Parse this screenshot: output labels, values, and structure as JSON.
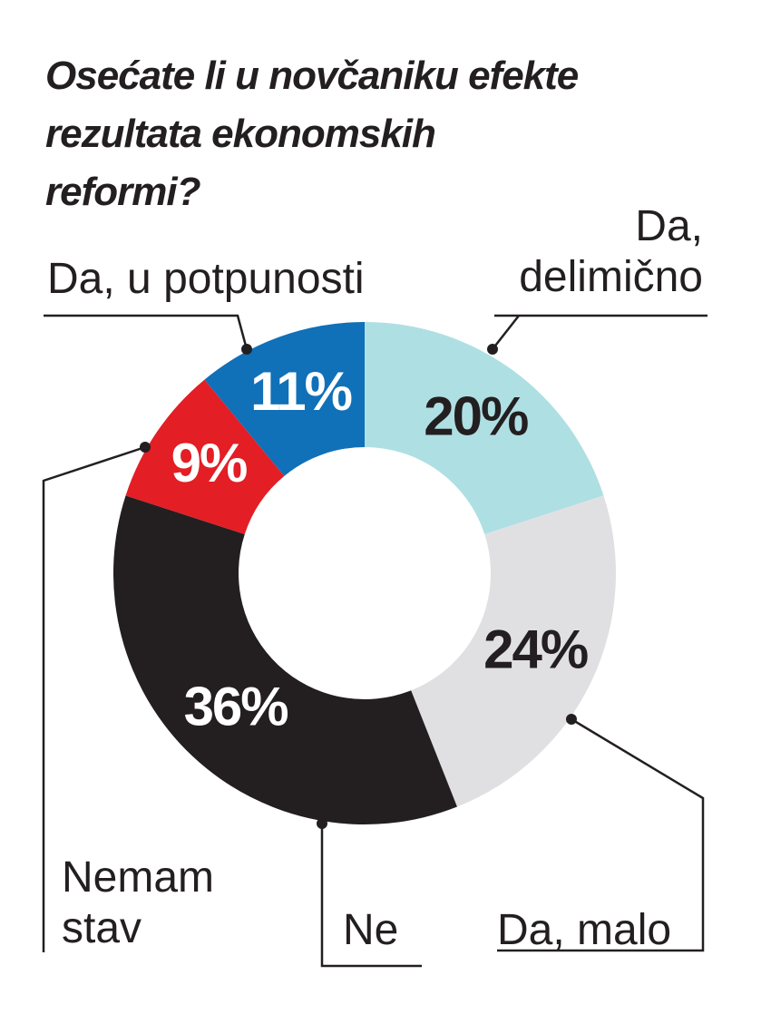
{
  "chart_data": {
    "type": "donut",
    "title": "Osećate li u novčaniku efekte rezultata ekonomskih reformi?",
    "categories": [
      "Da, delimično",
      "Da, malo",
      "Ne",
      "Nemam stav",
      "Da, u potpunosti"
    ],
    "values": [
      20,
      24,
      36,
      9,
      11
    ],
    "value_labels": [
      "20%",
      "24%",
      "36%",
      "9%",
      "11%"
    ],
    "colors": [
      "#aedfe3",
      "#e0e0e2",
      "#231f20",
      "#e31e25",
      "#1070b8"
    ]
  }
}
